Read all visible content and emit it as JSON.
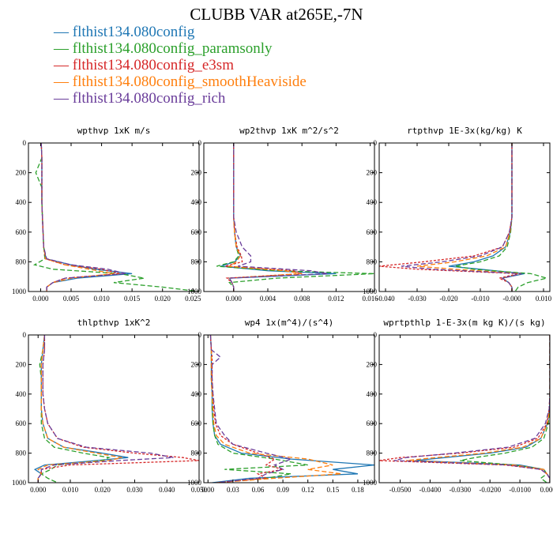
{
  "figure": {
    "title": "CLUBB VAR at265E,-7N",
    "legend": [
      {
        "label": "flthist134.080config",
        "color": "#1f77b4"
      },
      {
        "label": "flthist134.080config_paramsonly",
        "color": "#2ca02c"
      },
      {
        "label": "flthist134.080config_e3sm",
        "color": "#d62728"
      },
      {
        "label": "flthist134.080config_smoothHeaviside",
        "color": "#ff7f0e"
      },
      {
        "label": "flthist134.080config_rich",
        "color": "#6a3d9a"
      }
    ]
  },
  "chart_data": [
    {
      "type": "line",
      "title": "wpthvp  1xK m/s",
      "xlim": [
        -0.002,
        0.026
      ],
      "xticks": [
        "0.000",
        "0.005",
        "0.010",
        "0.015",
        "0.020",
        "0.025"
      ],
      "xtick_values": [
        0,
        0.005,
        0.01,
        0.015,
        0.02,
        0.025
      ],
      "ylim": [
        1000,
        0
      ],
      "yticks": [
        0,
        200,
        400,
        600,
        800,
        1000
      ],
      "y": [
        0,
        100,
        200,
        300,
        400,
        500,
        600,
        700,
        780,
        820,
        850,
        880,
        910,
        940,
        970,
        1000
      ],
      "series": [
        {
          "name": "flthist134.080config",
          "values": [
            0.0001,
            0.0002,
            0.0002,
            0.0002,
            0.0002,
            0.0003,
            0.0004,
            0.0005,
            0.0009,
            0.005,
            0.009,
            0.015,
            0.006,
            0.002,
            0.001,
            0.001
          ]
        },
        {
          "name": "flthist134.080config_paramsonly",
          "values": [
            0.0001,
            0.0002,
            -0.0008,
            0.0002,
            0.0002,
            0.0003,
            0.0004,
            0.0005,
            0.0007,
            -0.001,
            0.002,
            0.013,
            0.017,
            0.012,
            0.02,
            0.026
          ]
        },
        {
          "name": "flthist134.080config_e3sm",
          "values": [
            0.0001,
            0.0002,
            0.0002,
            0.0002,
            0.0002,
            0.0003,
            0.0004,
            0.0005,
            0.0008,
            0.004,
            0.01,
            0.013,
            0.004,
            0.002,
            0.001,
            0.001
          ]
        },
        {
          "name": "flthist134.080config_smoothHeaviside",
          "values": [
            0.0001,
            0.0002,
            0.0002,
            0.0002,
            0.0002,
            0.0003,
            0.0004,
            0.0005,
            0.0008,
            0.004,
            0.008,
            0.012,
            0.005,
            0.002,
            0.001,
            0.001
          ]
        },
        {
          "name": "flthist134.080config_rich",
          "values": [
            0.0001,
            0.0002,
            0.0002,
            0.0002,
            0.0002,
            0.0003,
            0.0004,
            0.0005,
            0.001,
            0.005,
            0.011,
            0.014,
            0.004,
            0.002,
            0.001,
            0.001
          ]
        }
      ]
    },
    {
      "type": "line",
      "title": "wp2thvp  1xK m^2/s^2",
      "xlim": [
        -0.0035,
        0.0165
      ],
      "xticks": [
        "0.000",
        "0.004",
        "0.008",
        "0.012",
        "0.016"
      ],
      "xtick_values": [
        0,
        0.004,
        0.008,
        0.012,
        0.016
      ],
      "ylim": [
        1000,
        0
      ],
      "yticks": [
        0,
        200,
        400,
        600,
        800,
        1000
      ],
      "y": [
        0,
        100,
        200,
        300,
        400,
        500,
        600,
        700,
        760,
        800,
        830,
        860,
        880,
        910,
        940,
        970,
        1000
      ],
      "series": [
        {
          "name": "flthist134.080config",
          "values": [
            0,
            0,
            0,
            0,
            0,
            0,
            0.0001,
            0.0003,
            0.0008,
            0.0001,
            -0.0015,
            0.004,
            0.012,
            -0.0005,
            -0.0002,
            0,
            0
          ]
        },
        {
          "name": "flthist134.080config_paramsonly",
          "values": [
            0,
            0,
            0,
            0,
            0,
            0,
            0.0001,
            0.0003,
            0.0006,
            0,
            -0.002,
            0.005,
            0.0165,
            0.005,
            -0.0005,
            0,
            0
          ]
        },
        {
          "name": "flthist134.080config_e3sm",
          "values": [
            0,
            0,
            0,
            0,
            0,
            0,
            0.0001,
            0.0004,
            0.0009,
            0.001,
            -0.001,
            0.007,
            0.008,
            -0.0008,
            -0.0002,
            0,
            0
          ]
        },
        {
          "name": "flthist134.080config_smoothHeaviside",
          "values": [
            0,
            0,
            0,
            0,
            0,
            0,
            0.0001,
            0.0003,
            0.0008,
            0.0003,
            -0.0005,
            0.006,
            0.008,
            -0.0005,
            -0.0002,
            0,
            0
          ]
        },
        {
          "name": "flthist134.080config_rich",
          "values": [
            0,
            0,
            0,
            0,
            0,
            0,
            0.0003,
            0.001,
            0.002,
            0.002,
            0.0005,
            0.009,
            0.011,
            -0.0005,
            -0.0002,
            0,
            0
          ]
        }
      ]
    },
    {
      "type": "line",
      "title": "rtpthvp  1E-3x(kg/kg) K",
      "xlim": [
        -0.042,
        0.012
      ],
      "xticks": [
        "-0.040",
        "-0.030",
        "-0.020",
        "-0.010",
        "-0.000",
        "0.010"
      ],
      "xtick_values": [
        -0.04,
        -0.03,
        -0.02,
        -0.01,
        0,
        0.01
      ],
      "ylim": [
        1000,
        0
      ],
      "yticks": [
        0,
        200,
        400,
        600,
        800,
        1000
      ],
      "y": [
        0,
        100,
        200,
        300,
        400,
        500,
        600,
        700,
        760,
        800,
        830,
        850,
        880,
        910,
        940,
        970,
        1000
      ],
      "series": [
        {
          "name": "flthist134.080config",
          "values": [
            0,
            0,
            0,
            0,
            0,
            0,
            -0.0005,
            -0.002,
            -0.006,
            -0.012,
            -0.02,
            -0.01,
            0.004,
            -0.003,
            -0.001,
            0,
            0
          ]
        },
        {
          "name": "flthist134.080config_paramsonly",
          "values": [
            0,
            0,
            0,
            0,
            0,
            0,
            -0.0004,
            -0.0015,
            -0.004,
            -0.01,
            -0.018,
            -0.012,
            0.006,
            0.011,
            0.005,
            0.002,
            0.001
          ]
        },
        {
          "name": "flthist134.080config_e3sm",
          "values": [
            0,
            0,
            0,
            0,
            0,
            0,
            -0.0008,
            -0.003,
            -0.012,
            -0.028,
            -0.042,
            -0.03,
            0.002,
            -0.004,
            -0.001,
            0,
            0
          ]
        },
        {
          "name": "flthist134.080config_smoothHeaviside",
          "values": [
            0,
            0,
            0,
            0,
            0,
            0,
            -0.0006,
            -0.002,
            -0.008,
            -0.018,
            -0.03,
            -0.018,
            0.003,
            -0.003,
            -0.001,
            0,
            0
          ]
        },
        {
          "name": "flthist134.080config_rich",
          "values": [
            0,
            0,
            0,
            0,
            0,
            0,
            -0.0008,
            -0.003,
            -0.01,
            -0.022,
            -0.035,
            -0.025,
            0.003,
            -0.003,
            -0.001,
            0,
            0
          ]
        }
      ]
    },
    {
      "type": "line",
      "title": "thlpthvp  1xK^2",
      "xlim": [
        -0.003,
        0.05
      ],
      "xticks": [
        "0.000",
        "0.010",
        "0.020",
        "0.030",
        "0.040",
        "0.050"
      ],
      "xtick_values": [
        0,
        0.01,
        0.02,
        0.03,
        0.04,
        0.05
      ],
      "ylim": [
        1000,
        0
      ],
      "yticks": [
        0,
        200,
        400,
        600,
        800,
        1000
      ],
      "y": [
        0,
        100,
        200,
        300,
        400,
        500,
        600,
        700,
        760,
        800,
        830,
        850,
        880,
        910,
        940,
        970,
        1000
      ],
      "series": [
        {
          "name": "flthist134.080config",
          "values": [
            0.002,
            0.0015,
            0.001,
            0.001,
            0.001,
            0.001,
            0.0015,
            0.003,
            0.008,
            0.02,
            0.028,
            0.018,
            0.002,
            -0.001,
            0.001,
            0,
            0
          ]
        },
        {
          "name": "flthist134.080config_paramsonly",
          "values": [
            0.002,
            0.0015,
            0.0005,
            0.001,
            0.001,
            0.001,
            0.001,
            0.002,
            0.005,
            0.014,
            0.022,
            0.02,
            0.006,
            0.004,
            0.001,
            0.003,
            0.006
          ]
        },
        {
          "name": "flthist134.080config_e3sm",
          "values": [
            0.002,
            0.002,
            0.0015,
            0.0015,
            0.0015,
            0.002,
            0.003,
            0.006,
            0.014,
            0.03,
            0.045,
            0.05,
            0.01,
            0.001,
            0.001,
            0,
            0
          ]
        },
        {
          "name": "flthist134.080config_smoothHeaviside",
          "values": [
            0.002,
            0.0015,
            0.001,
            0.001,
            0.001,
            0.001,
            0.0015,
            0.003,
            0.008,
            0.018,
            0.026,
            0.022,
            0.003,
            0,
            0.001,
            0,
            0
          ]
        },
        {
          "name": "flthist134.080config_rich",
          "values": [
            0.002,
            0.002,
            0.0015,
            0.0015,
            0.0015,
            0.002,
            0.003,
            0.006,
            0.015,
            0.035,
            0.042,
            0.025,
            0.005,
            0.001,
            0.001,
            0,
            0
          ]
        }
      ]
    },
    {
      "type": "line",
      "title": "wp4  1x(m^4)/(s^4)",
      "xlim": [
        -0.005,
        0.2
      ],
      "xticks": [
        "0.00",
        "0.03",
        "0.06",
        "0.09",
        "0.12",
        "0.15",
        "0.18"
      ],
      "xtick_values": [
        0,
        0.03,
        0.06,
        0.09,
        0.12,
        0.15,
        0.18
      ],
      "ylim": [
        1000,
        0
      ],
      "yticks": [
        0,
        200,
        400,
        600,
        800,
        1000
      ],
      "y": [
        0,
        100,
        150,
        200,
        300,
        400,
        500,
        600,
        680,
        740,
        800,
        840,
        880,
        910,
        940,
        970,
        1000
      ],
      "series": [
        {
          "name": "flthist134.080config",
          "values": [
            0.003,
            0.004,
            0.004,
            0.004,
            0.004,
            0.005,
            0.005,
            0.006,
            0.008,
            0.015,
            0.04,
            0.1,
            0.2,
            0.15,
            0.18,
            0.05,
            0.005
          ]
        },
        {
          "name": "flthist134.080config_paramsonly",
          "values": [
            0.003,
            0.004,
            0.004,
            0.004,
            0.004,
            0.005,
            0.005,
            0.006,
            0.008,
            0.012,
            0.03,
            0.08,
            0.12,
            0.02,
            0.1,
            0.07,
            0.01
          ]
        },
        {
          "name": "flthist134.080config_e3sm",
          "values": [
            0.003,
            0.004,
            0.005,
            0.005,
            0.005,
            0.006,
            0.007,
            0.009,
            0.015,
            0.03,
            0.06,
            0.08,
            0.07,
            0.09,
            0.06,
            0.07,
            0.01
          ]
        },
        {
          "name": "flthist134.080config_smoothHeaviside",
          "values": [
            0.003,
            0.004,
            0.004,
            0.004,
            0.004,
            0.005,
            0.006,
            0.007,
            0.01,
            0.02,
            0.05,
            0.12,
            0.15,
            0.12,
            0.16,
            0.08,
            0.01
          ]
        },
        {
          "name": "flthist134.080config_rich",
          "values": [
            0.003,
            0.004,
            0.015,
            0.005,
            0.005,
            0.006,
            0.008,
            0.01,
            0.02,
            0.03,
            0.07,
            0.1,
            0.08,
            0.09,
            0.07,
            0.06,
            0.01
          ]
        }
      ]
    },
    {
      "type": "line",
      "title": "wprtpthlp  1-E-3x(m kg K)/(s kg)",
      "xlim": [
        -0.057,
        0.0
      ],
      "xticks": [
        "-0.0500",
        "-0.0400",
        "-0.0300",
        "-0.0200",
        "-0.0100",
        "0.0000"
      ],
      "xtick_values": [
        -0.05,
        -0.04,
        -0.03,
        -0.02,
        -0.01,
        0
      ],
      "ylim": [
        1000,
        0
      ],
      "yticks": [
        0,
        200,
        400,
        600,
        800,
        1000
      ],
      "y": [
        0,
        100,
        200,
        300,
        400,
        500,
        600,
        700,
        760,
        800,
        830,
        850,
        880,
        910,
        940,
        970,
        1000
      ],
      "series": [
        {
          "name": "flthist134.080config",
          "values": [
            0,
            0,
            0,
            0,
            0,
            -0.0001,
            -0.0008,
            -0.003,
            -0.008,
            -0.02,
            -0.035,
            -0.045,
            -0.01,
            -0.002,
            -0.001,
            0,
            0
          ]
        },
        {
          "name": "flthist134.080config_paramsonly",
          "values": [
            0,
            0,
            0,
            0,
            0,
            -0.0001,
            -0.0005,
            -0.002,
            -0.006,
            -0.015,
            -0.025,
            -0.03,
            -0.012,
            -0.002,
            -0.001,
            -0.003,
            -0.001
          ]
        },
        {
          "name": "flthist134.080config_e3sm",
          "values": [
            0,
            0,
            0,
            0,
            0,
            -0.0002,
            -0.001,
            -0.004,
            -0.012,
            -0.03,
            -0.05,
            -0.057,
            -0.015,
            -0.003,
            -0.001,
            0,
            0
          ]
        },
        {
          "name": "flthist134.080config_smoothHeaviside",
          "values": [
            0,
            0,
            0,
            0,
            0,
            -0.0001,
            -0.0008,
            -0.003,
            -0.009,
            -0.022,
            -0.038,
            -0.048,
            -0.012,
            -0.002,
            -0.001,
            0,
            0
          ]
        },
        {
          "name": "flthist134.080config_rich",
          "values": [
            0,
            0,
            0,
            0,
            0,
            -0.0002,
            -0.0015,
            -0.005,
            -0.014,
            -0.032,
            -0.048,
            -0.052,
            -0.014,
            -0.003,
            -0.001,
            0,
            0
          ]
        }
      ]
    }
  ]
}
